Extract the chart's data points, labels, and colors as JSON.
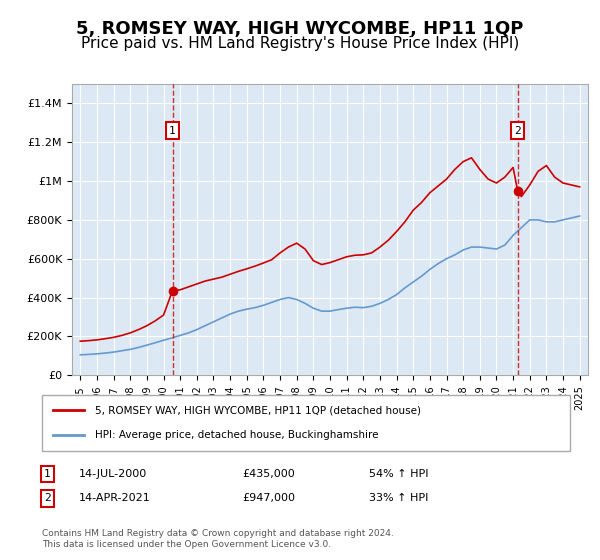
{
  "title": "5, ROMSEY WAY, HIGH WYCOMBE, HP11 1QP",
  "subtitle": "Price paid vs. HM Land Registry's House Price Index (HPI)",
  "title_fontsize": 13,
  "subtitle_fontsize": 11,
  "background_color": "#ffffff",
  "plot_bg_color": "#dce9f5",
  "grid_color": "#ffffff",
  "red_line_color": "#cc0000",
  "blue_line_color": "#6699cc",
  "marker1_x": 2000.54,
  "marker1_y": 435000,
  "marker2_x": 2021.28,
  "marker2_y": 947000,
  "vline1_x": 2000.54,
  "vline2_x": 2021.28,
  "ylim": [
    0,
    1500000
  ],
  "xlim_start": 1994.5,
  "xlim_end": 2025.5,
  "yticks": [
    0,
    200000,
    400000,
    600000,
    800000,
    1000000,
    1200000,
    1400000
  ],
  "ytick_labels": [
    "£0",
    "£200K",
    "£400K",
    "£600K",
    "£800K",
    "£1M",
    "£1.2M",
    "£1.4M"
  ],
  "xticks": [
    1995,
    1996,
    1997,
    1998,
    1999,
    2000,
    2001,
    2002,
    2003,
    2004,
    2005,
    2006,
    2007,
    2008,
    2009,
    2010,
    2011,
    2012,
    2013,
    2014,
    2015,
    2016,
    2017,
    2018,
    2019,
    2020,
    2021,
    2022,
    2023,
    2024,
    2025
  ],
  "legend1_label": "5, ROMSEY WAY, HIGH WYCOMBE, HP11 1QP (detached house)",
  "legend2_label": "HPI: Average price, detached house, Buckinghamshire",
  "footnote_label1": "1",
  "footnote_label2": "2",
  "footnote1_date": "14-JUL-2000",
  "footnote1_price": "£435,000",
  "footnote1_hpi": "54% ↑ HPI",
  "footnote2_date": "14-APR-2021",
  "footnote2_price": "£947,000",
  "footnote2_hpi": "33% ↑ HPI",
  "copyright": "Contains HM Land Registry data © Crown copyright and database right 2024.\nThis data is licensed under the Open Government Licence v3.0.",
  "red_line_x": [
    1995,
    1995.5,
    1996,
    1996.5,
    1997,
    1997.5,
    1998,
    1998.5,
    1999,
    1999.5,
    2000,
    2000.54,
    2001,
    2001.5,
    2002,
    2002.5,
    2003,
    2003.5,
    2004,
    2004.5,
    2005,
    2005.5,
    2006,
    2006.5,
    2007,
    2007.5,
    2008,
    2008.5,
    2009,
    2009.5,
    2010,
    2010.5,
    2011,
    2011.5,
    2012,
    2012.5,
    2013,
    2013.5,
    2014,
    2014.5,
    2015,
    2015.5,
    2016,
    2016.5,
    2017,
    2017.5,
    2018,
    2018.5,
    2019,
    2019.5,
    2020,
    2020.5,
    2021,
    2021.28,
    2021.5,
    2022,
    2022.5,
    2023,
    2023.5,
    2024,
    2024.5,
    2025
  ],
  "red_line_y": [
    175000,
    178000,
    182000,
    188000,
    195000,
    205000,
    218000,
    235000,
    255000,
    280000,
    310000,
    435000,
    440000,
    455000,
    470000,
    485000,
    495000,
    505000,
    520000,
    535000,
    548000,
    562000,
    578000,
    595000,
    630000,
    660000,
    680000,
    650000,
    590000,
    570000,
    580000,
    595000,
    610000,
    618000,
    620000,
    630000,
    660000,
    695000,
    740000,
    790000,
    850000,
    890000,
    940000,
    975000,
    1010000,
    1060000,
    1100000,
    1120000,
    1060000,
    1010000,
    990000,
    1020000,
    1070000,
    947000,
    920000,
    980000,
    1050000,
    1080000,
    1020000,
    990000,
    980000,
    970000
  ],
  "blue_line_x": [
    1995,
    1995.5,
    1996,
    1996.5,
    1997,
    1997.5,
    1998,
    1998.5,
    1999,
    1999.5,
    2000,
    2000.5,
    2001,
    2001.5,
    2002,
    2002.5,
    2003,
    2003.5,
    2004,
    2004.5,
    2005,
    2005.5,
    2006,
    2006.5,
    2007,
    2007.5,
    2008,
    2008.5,
    2009,
    2009.5,
    2010,
    2010.5,
    2011,
    2011.5,
    2012,
    2012.5,
    2013,
    2013.5,
    2014,
    2014.5,
    2015,
    2015.5,
    2016,
    2016.5,
    2017,
    2017.5,
    2018,
    2018.5,
    2019,
    2019.5,
    2020,
    2020.5,
    2021,
    2021.5,
    2022,
    2022.5,
    2023,
    2023.5,
    2024,
    2024.5,
    2025
  ],
  "blue_line_y": [
    105000,
    107000,
    110000,
    114000,
    119000,
    126000,
    133000,
    143000,
    155000,
    167000,
    180000,
    192000,
    205000,
    218000,
    235000,
    255000,
    275000,
    295000,
    315000,
    330000,
    340000,
    348000,
    360000,
    375000,
    390000,
    400000,
    390000,
    370000,
    345000,
    330000,
    330000,
    338000,
    345000,
    350000,
    348000,
    355000,
    370000,
    390000,
    415000,
    450000,
    480000,
    510000,
    545000,
    575000,
    600000,
    620000,
    645000,
    660000,
    660000,
    655000,
    650000,
    670000,
    720000,
    760000,
    800000,
    800000,
    790000,
    790000,
    800000,
    810000,
    820000
  ]
}
